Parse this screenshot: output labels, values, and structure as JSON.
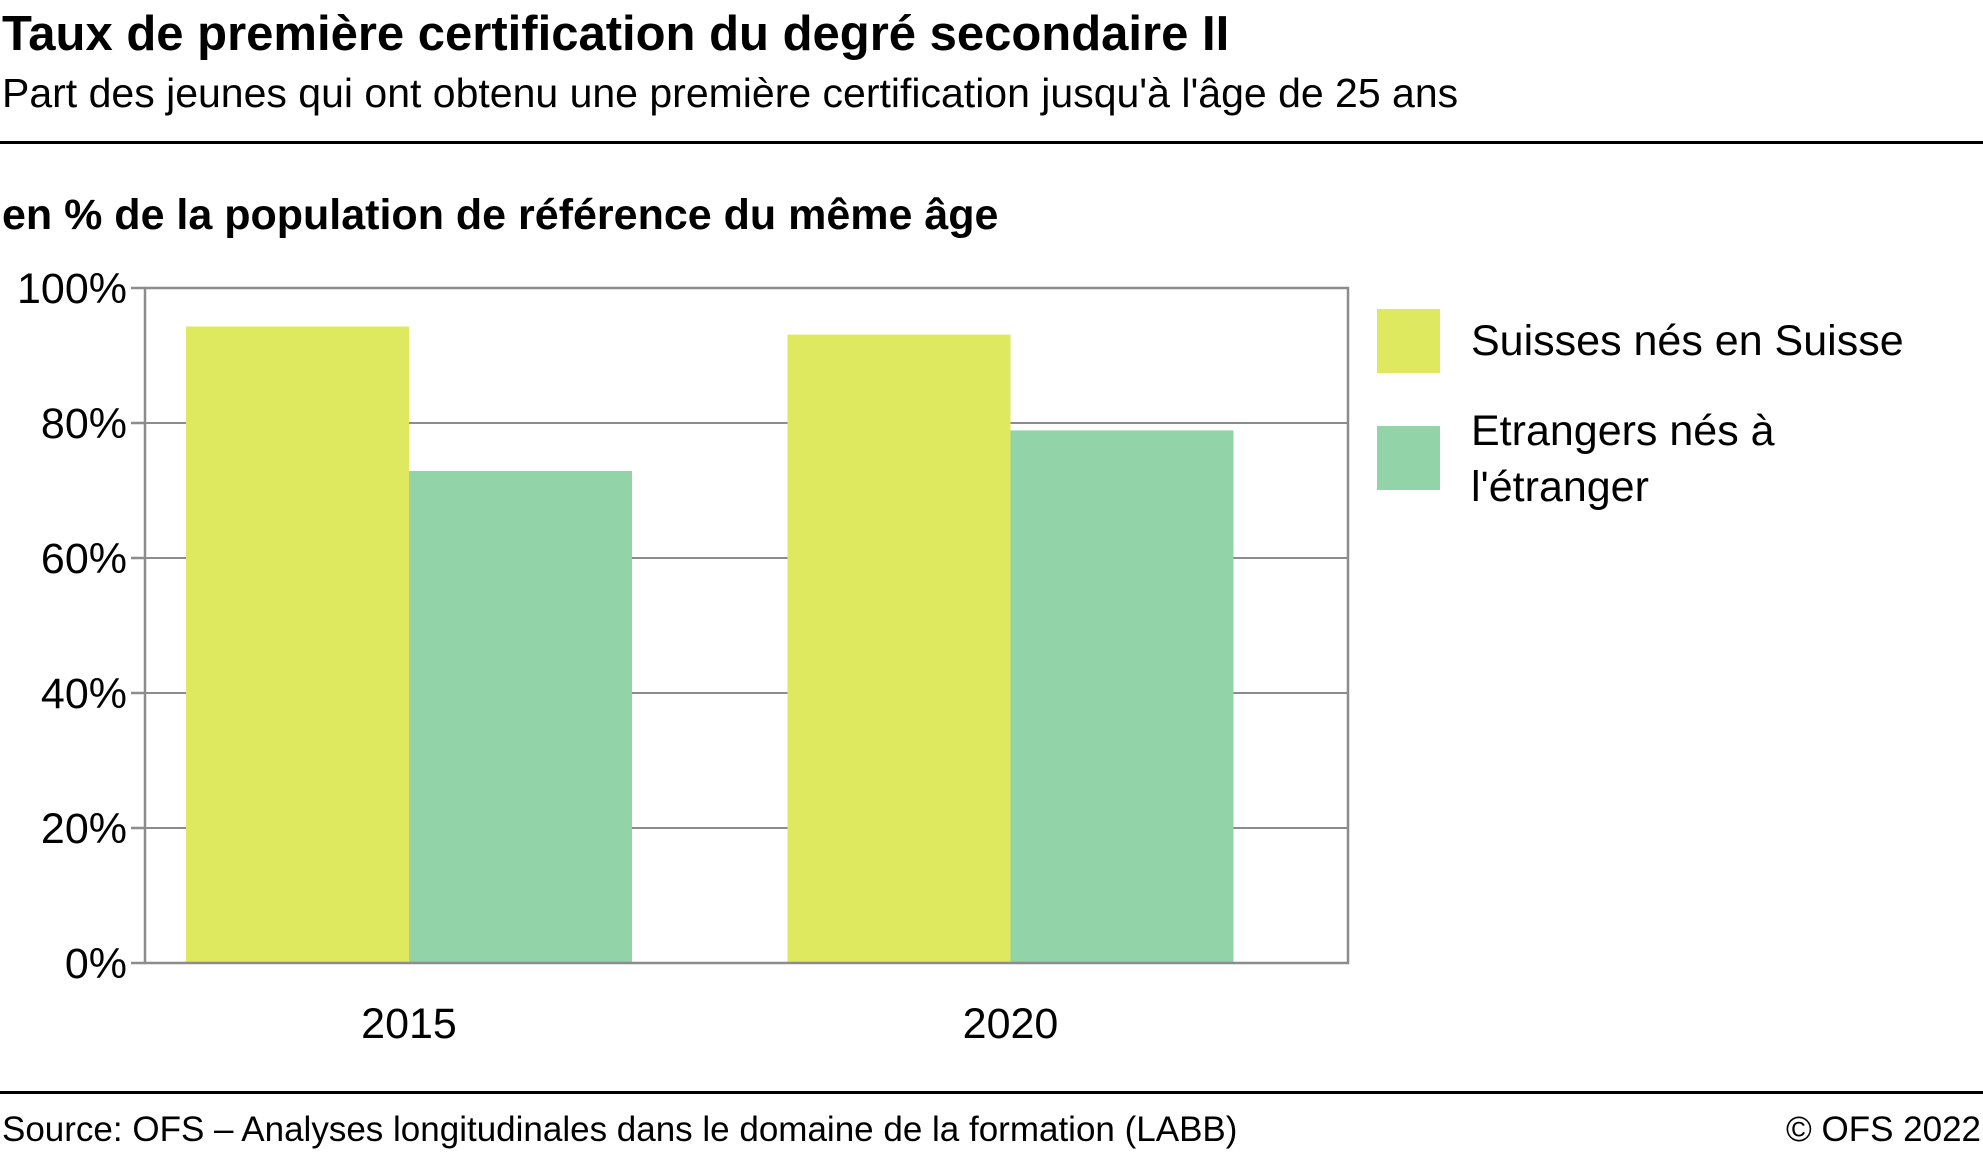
{
  "header": {
    "title": "Taux de première certification du degré secondaire II",
    "subtitle": "Part des jeunes qui ont obtenu une première certification jusqu'à l'âge de 25 ans"
  },
  "chart_data": {
    "type": "bar",
    "title": "Taux de première certification du degré secondaire II",
    "subtitle": "Part des jeunes qui ont obtenu une première certification jusqu'à l'âge de 25 ans",
    "ylabel": "en % de la population de référence du même âge",
    "xlabel": "",
    "categories": [
      "2015",
      "2020"
    ],
    "series": [
      {
        "name": "Suisses nés en Suisse",
        "color": "#dfe95f",
        "values": [
          94.3,
          93.1
        ]
      },
      {
        "name": "Etrangers nés à l'étranger",
        "color": "#93d3a8",
        "values": [
          72.9,
          78.9
        ]
      }
    ],
    "ylim": [
      0,
      100
    ],
    "yticks": [
      0,
      20,
      40,
      60,
      80,
      100
    ],
    "ytick_labels": [
      "0%",
      "20%",
      "40%",
      "60%",
      "80%",
      "100%"
    ],
    "grid": true,
    "legend_position": "right"
  },
  "legend": {
    "items": [
      {
        "line1": "Suisses nés en Suisse",
        "line2": ""
      },
      {
        "line1": "Etrangers nés à",
        "line2": "l'étranger"
      }
    ]
  },
  "footer": {
    "source": "Source: OFS – Analyses longitudinales dans le domaine de la formation (LABB)",
    "copyright": "© OFS 2022"
  },
  "colors": {
    "grid": "#8c8c8c",
    "frame": "#8c8c8c"
  }
}
